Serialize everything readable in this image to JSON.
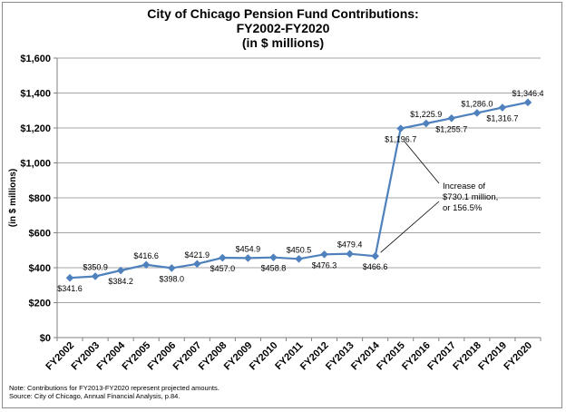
{
  "chart_data": {
    "type": "line",
    "title_lines": [
      "City of Chicago Pension Fund Contributions:",
      "FY2002-FY2020",
      "(in $ millions)"
    ],
    "xlabel": "",
    "ylabel": "(in $ millions)",
    "ylim": [
      0,
      1600
    ],
    "y_ticks": [
      "$0",
      "$200",
      "$400",
      "$600",
      "$800",
      "$1,000",
      "$1,200",
      "$1,400",
      "$1,600"
    ],
    "grid": "horizontal",
    "categories": [
      "FY2002",
      "FY2003",
      "FY2004",
      "FY2005",
      "FY2006",
      "FY2007",
      "FY2008",
      "FY2009",
      "FY2010",
      "FY2011",
      "FY2012",
      "FY2013",
      "FY2014",
      "FY2015",
      "FY2016",
      "FY2017",
      "FY2018",
      "FY2019",
      "FY2020"
    ],
    "series": [
      {
        "color": "#4f81bd",
        "values": [
          341.6,
          350.9,
          384.2,
          416.6,
          398.0,
          421.9,
          457.0,
          454.9,
          458.8,
          450.5,
          476.3,
          479.4,
          466.6,
          1196.7,
          1225.9,
          1255.7,
          1286.0,
          1316.7,
          1346.4
        ],
        "labels": [
          "$341.6",
          "$350.9",
          "$384.2",
          "$416.6",
          "$398.0",
          "$421.9",
          "$457.0",
          "$454.9",
          "$458.8",
          "$450.5",
          "$476.3",
          "$479.4",
          "$466.6",
          "$1,196.7",
          "$1,225.9",
          "$1,255.7",
          "$1,286.0",
          "$1,316.7",
          "$1,346.4"
        ],
        "label_pos": [
          "below",
          "above",
          "below",
          "above",
          "below",
          "above",
          "below",
          "above",
          "below",
          "above",
          "below",
          "above",
          "below",
          "below",
          "above",
          "below",
          "above",
          "below",
          "above"
        ]
      }
    ],
    "annotation": {
      "lines": [
        "Increase of",
        "$730.1 million,",
        "or 156.5%"
      ],
      "from_category_index": 12,
      "to_category_index": 13
    },
    "note_lines": [
      "Note: Contributions for FY2013-FY2020 represent projected amounts.",
      "Source: City of Chicago, Annual Financial Analysis, p.84."
    ]
  }
}
